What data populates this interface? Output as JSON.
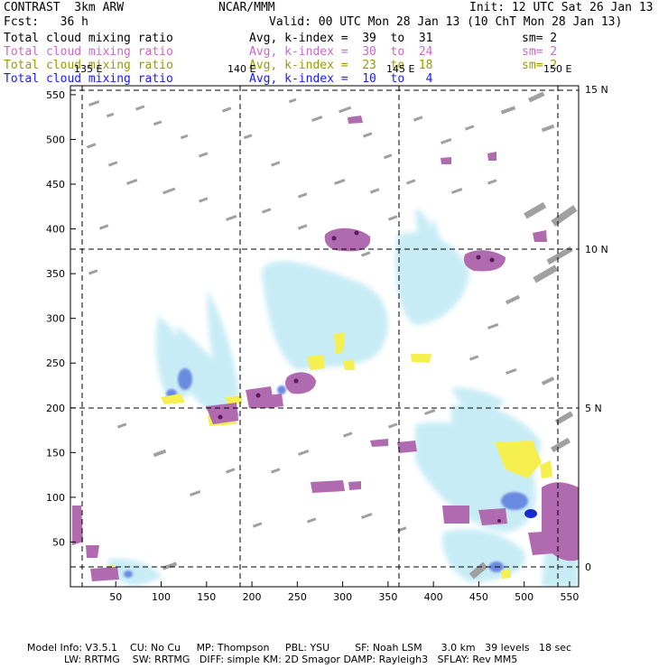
{
  "header": {
    "left1": "CONTRAST  3km ARW",
    "center1": "NCAR/MMM",
    "right1": "Init: 12 UTC Sat 26 Jan 13",
    "left2": "Fcst:   36 h",
    "right2": "Valid: 00 UTC Mon 28 Jan 13 (10 ChT Mon 28 Jan 13)"
  },
  "fields": [
    {
      "label": "Total cloud mixing ratio",
      "avg": "Avg, k-index =  39  to  31",
      "sm": "sm= 2",
      "color": "#000000"
    },
    {
      "label": "Total cloud mixing ratio",
      "avg": "Avg, k-index =  30  to  24",
      "sm": "sm= 2",
      "color": "#c86ac8"
    },
    {
      "label": "Total cloud mixing ratio",
      "avg": "Avg, k-index =  23  to  18",
      "sm": "sm= 2",
      "color": "#9a9a00"
    },
    {
      "label": "Total cloud mixing ratio",
      "avg": "Avg, k-index =  10  to   4",
      "sm": "",
      "color": "#1a1aff"
    }
  ],
  "chart_data": {
    "type": "heatmap",
    "x_ticks": [
      "50",
      "100",
      "150",
      "200",
      "250",
      "300",
      "350",
      "400",
      "450",
      "500",
      "550"
    ],
    "y_ticks": [
      "550",
      "500",
      "450",
      "400",
      "350",
      "300",
      "250",
      "200",
      "150",
      "100",
      "50"
    ],
    "xlim": [
      0,
      560
    ],
    "ylim": [
      0,
      560
    ],
    "lon_labels": [
      "135 E",
      "140 E",
      "145 E",
      "150 E"
    ],
    "lat_labels": [
      "15 N",
      "10 N",
      "5 N",
      "0"
    ],
    "layers": [
      {
        "name": "gray",
        "color": "#a0a0a0"
      },
      {
        "name": "purple",
        "color": "#b06ab0"
      },
      {
        "name": "yellow",
        "color": "#f5f050"
      },
      {
        "name": "lightblue",
        "color": "#c8ecf6"
      },
      {
        "name": "blue",
        "color": "#2a3ad8"
      }
    ]
  },
  "footer": {
    "line1": "Model Info: V3.5.1    CU: No Cu     MP: Thompson     PBL: YSU        SF: Noah LSM      3.0 km   39 levels   18 sec",
    "line2": "LW: RRTMG    SW: RRTMG   DIFF: simple KM: 2D Smagor DAMP: Rayleigh3   SFLAY: Rev MM5"
  }
}
